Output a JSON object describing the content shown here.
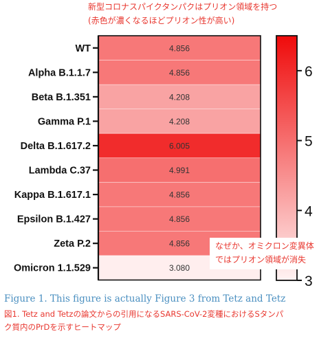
{
  "annotations": {
    "top_line1": "新型コロナスパイクタンパクはプリオン領域を持つ",
    "top_line2": "(赤色が濃くなるほどプリオン性が高い)",
    "bottom_line1": "なぜか、オミクロン変異体",
    "bottom_line2": "ではプリオン領域が消失"
  },
  "caption": {
    "english": "Figure 1. This figure is actually Figure 3 from Tetz and Tetz",
    "japanese_line1": "図1. Tetz and Tetzの論文からの引用になるSARS-CoV-2変種におけるSタンパ",
    "japanese_line2": "ク質内のPrDを示すヒートマップ"
  },
  "chart_data": {
    "type": "heatmap",
    "categories": [
      "WT",
      "Alpha B.1.1.7",
      "Beta B.1.351",
      "Gamma P.1",
      "Delta B.1.617.2",
      "Lambda C.37",
      "Kappa B.1.617.1",
      "Epsilon B.1.427",
      "Zeta P.2",
      "Omicron 1.1.529"
    ],
    "values": [
      4.856,
      4.856,
      4.208,
      4.208,
      6.005,
      4.991,
      4.856,
      4.856,
      4.856,
      3.08
    ],
    "value_labels": [
      "4.856",
      "4.856",
      "4.208",
      "4.208",
      "6.005",
      "4.991",
      "4.856",
      "4.856",
      "4.856",
      "3.080"
    ],
    "colorbar": {
      "min": 3,
      "max": 6.5,
      "ticks": [
        3,
        4,
        5,
        6
      ],
      "low_color": "#fff3f3",
      "high_color": "#ef0b0b"
    }
  }
}
